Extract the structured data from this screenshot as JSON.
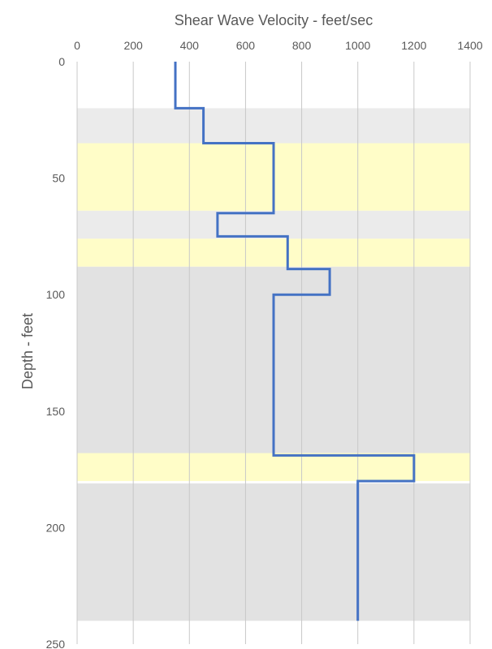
{
  "chart_data": {
    "type": "line",
    "title": "",
    "xlabel": "Shear Wave Velocity - feet/sec",
    "ylabel": "Depth - feet",
    "xlim": [
      0,
      1400
    ],
    "ylim": [
      0,
      250
    ],
    "y_inverted": true,
    "x_axis_position": "top",
    "x_ticks": [
      0,
      200,
      400,
      600,
      800,
      1000,
      1200,
      1400
    ],
    "y_ticks": [
      0,
      50,
      100,
      150,
      200,
      250
    ],
    "grid": "vertical",
    "legend": "none",
    "series": [
      {
        "color": "#4472c4",
        "points": [
          [
            350,
            0
          ],
          [
            350,
            20
          ],
          [
            450,
            20
          ],
          [
            450,
            35
          ],
          [
            700,
            35
          ],
          [
            700,
            65
          ],
          [
            500,
            65
          ],
          [
            500,
            75
          ],
          [
            750,
            75
          ],
          [
            750,
            89
          ],
          [
            900,
            89
          ],
          [
            900,
            100
          ],
          [
            700,
            100
          ],
          [
            700,
            169
          ],
          [
            1200,
            169
          ],
          [
            1200,
            180
          ],
          [
            1000,
            180
          ],
          [
            1000,
            240
          ]
        ]
      }
    ],
    "bands": [
      {
        "from": 20,
        "to": 35,
        "color": "#ebebeb"
      },
      {
        "from": 35,
        "to": 64,
        "color": "#fffdc8"
      },
      {
        "from": 64,
        "to": 76,
        "color": "#ebebeb"
      },
      {
        "from": 76,
        "to": 88,
        "color": "#fffdc8"
      },
      {
        "from": 88,
        "to": 168,
        "color": "#e2e2e2"
      },
      {
        "from": 168,
        "to": 180,
        "color": "#fffdc8"
      },
      {
        "from": 181,
        "to": 240,
        "color": "#e2e2e2"
      }
    ]
  }
}
